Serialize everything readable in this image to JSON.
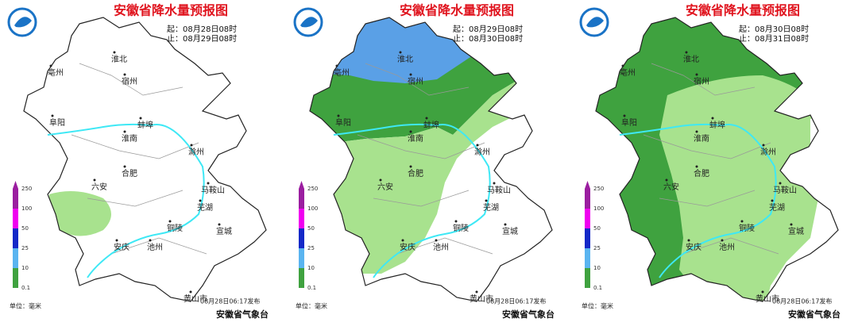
{
  "panels": [
    {
      "title": "安徽省降水量预报图",
      "start": "起：08月28日08时",
      "end": "止：08月29日08时"
    },
    {
      "title": "安徽省降水量预报图",
      "start": "起：08月29日08时",
      "end": "止：08月30日08时"
    },
    {
      "title": "安徽省降水量预报图",
      "start": "起：08月30日08时",
      "end": "止：08月31日08时"
    }
  ],
  "cities": [
    "淮北",
    "宿州",
    "亳州",
    "阜阳",
    "蚌埠",
    "淮南",
    "滁州",
    "合肥",
    "六安",
    "马鞍山",
    "芜湖",
    "铜陵",
    "宣城",
    "安庆",
    "池州",
    "黄山市"
  ],
  "legend": {
    "ticks": [
      "250",
      "100",
      "50",
      "25",
      "10",
      "0.1"
    ],
    "unit": "单位：毫米"
  },
  "issued": "08月28日06:17发布",
  "agency": "安徽省气象台"
}
